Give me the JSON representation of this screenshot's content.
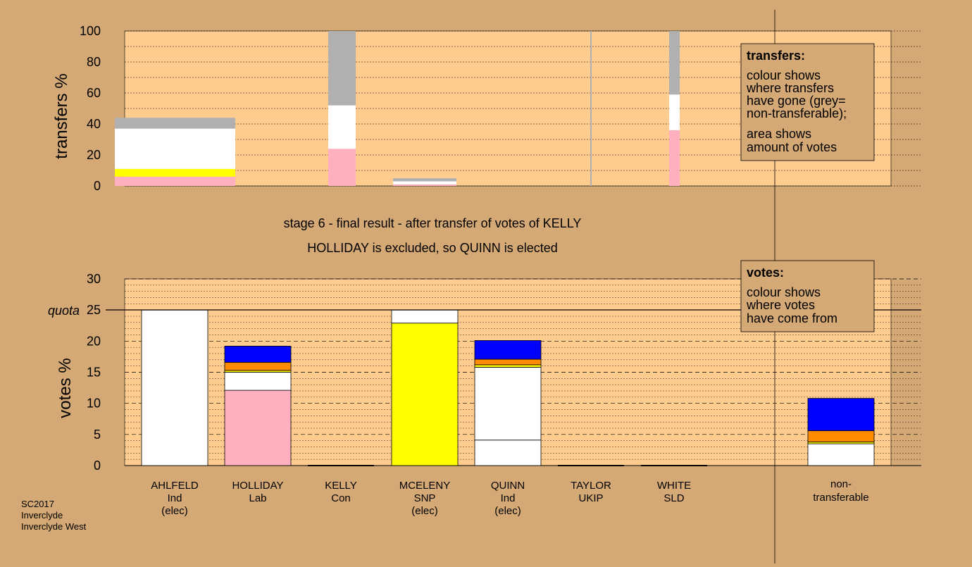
{
  "chart_data": [
    {
      "type": "bar",
      "stacked": true,
      "title": "",
      "ylabel": "transfers %",
      "ylim": [
        0,
        100
      ],
      "yticks": [
        0,
        20,
        40,
        60,
        80,
        100
      ],
      "grid": true,
      "note": "bar width is proportional to the amount of votes transferred",
      "columns": [
        {
          "source": "AHLFELD",
          "segments": [
            {
              "color": "pink",
              "value": 6
            },
            {
              "color": "yellow",
              "value": 5
            },
            {
              "color": "white",
              "value": 26
            },
            {
              "color": "grey",
              "value": 7
            }
          ]
        },
        {
          "source": "HOLLIDAY",
          "segments": [
            {
              "color": "pink",
              "value": 24
            },
            {
              "color": "white",
              "value": 28
            },
            {
              "color": "grey",
              "value": 48
            }
          ]
        },
        {
          "source": "KELLY",
          "segments": [
            {
              "color": "pink",
              "value": 1
            },
            {
              "color": "white",
              "value": 2
            },
            {
              "color": "grey",
              "value": 2
            }
          ]
        },
        {
          "source": "TAYLOR",
          "segments": [
            {
              "color": "grey",
              "value": 100
            }
          ]
        },
        {
          "source": "WHITE",
          "segments": [
            {
              "color": "pink",
              "value": 36
            },
            {
              "color": "white",
              "value": 23
            },
            {
              "color": "grey",
              "value": 41
            }
          ]
        }
      ]
    },
    {
      "type": "bar",
      "stacked": true,
      "title": "",
      "ylabel": "votes %",
      "ylim": [
        0,
        30
      ],
      "yticks": [
        0,
        5,
        10,
        15,
        20,
        25,
        30
      ],
      "quota": 25,
      "quota_label": "quota",
      "grid": true,
      "categories": [
        {
          "name": "AHLFELD",
          "party": "Ind",
          "status": "(elec)",
          "segments": [
            {
              "color": "white",
              "value": 25
            }
          ]
        },
        {
          "name": "HOLLIDAY",
          "party": "Lab",
          "status": "",
          "segments": [
            {
              "color": "pink",
              "value": 12.1
            },
            {
              "color": "white",
              "value": 2.9
            },
            {
              "color": "yellow",
              "value": 0.3
            },
            {
              "color": "orange",
              "value": 1.3
            },
            {
              "color": "blue",
              "value": 2.6
            }
          ]
        },
        {
          "name": "KELLY",
          "party": "Con",
          "status": "",
          "segments": []
        },
        {
          "name": "MCELENY",
          "party": "SNP",
          "status": "(elec)",
          "segments": [
            {
              "color": "yellow",
              "value": 22.9
            },
            {
              "color": "white",
              "value": 2.1
            }
          ]
        },
        {
          "name": "QUINN",
          "party": "Ind",
          "status": "(elec)",
          "segments": [
            {
              "color": "white",
              "value": 4.1
            },
            {
              "color": "white",
              "value": 11.7
            },
            {
              "color": "yellow",
              "value": 0.4
            },
            {
              "color": "orange",
              "value": 0.9
            },
            {
              "color": "blue",
              "value": 3.0
            }
          ]
        },
        {
          "name": "TAYLOR",
          "party": "UKIP",
          "status": "",
          "segments": []
        },
        {
          "name": "WHITE",
          "party": "SLD",
          "status": "",
          "segments": []
        },
        {
          "name": "non-transferable",
          "party": "",
          "status": "",
          "segments": [
            {
              "color": "white",
              "value": 3.5
            },
            {
              "color": "yellow",
              "value": 0.3
            },
            {
              "color": "orange",
              "value": 1.8
            },
            {
              "color": "blue",
              "value": 5.2
            }
          ]
        }
      ]
    }
  ],
  "colors": {
    "background": "#d4a976",
    "plot": "#ffcc90",
    "pink": "#ffb0c0",
    "yellow": "#ffff00",
    "white": "#ffffff",
    "grey": "#b0b0b0",
    "orange": "#ff8c00",
    "blue": "#0000ff"
  },
  "caption": {
    "line1": "stage 6 - final result - after transfer of votes of KELLY",
    "line2": "HOLLIDAY is excluded, so QUINN is elected"
  },
  "legend_transfers": {
    "title": "transfers:",
    "lines": [
      "colour shows",
      "where transfers",
      "have gone (grey=",
      "non-transferable);",
      "area shows",
      "amount of votes"
    ]
  },
  "legend_votes": {
    "title": "votes:",
    "lines": [
      "colour shows",
      "where votes",
      "have come from"
    ]
  },
  "footer": [
    "SC2017",
    "Inverclyde",
    "Inverclyde West"
  ],
  "nontransferable_label": [
    "non-",
    "transferable"
  ]
}
